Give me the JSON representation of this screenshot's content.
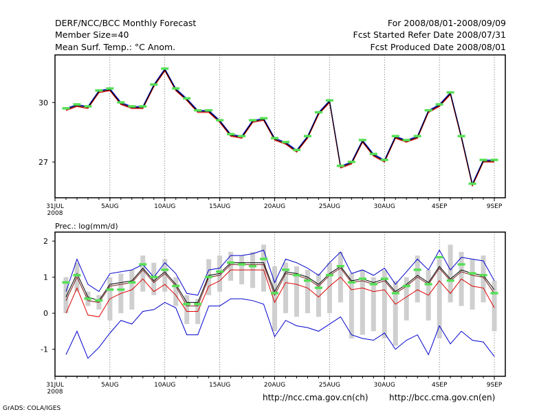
{
  "header": {
    "title": "DERF/NCC/BCC Monthly Forecast",
    "member_size": "Member Size=40",
    "variable": "Mean Surf. Temp.: °C Anom.",
    "period": "For 2008/08/01-2008/09/09",
    "started": "Fcst Started Refer Date 2008/07/31",
    "produced": "Fcst Produced Date 2008/08/01"
  },
  "footer": {
    "grads": "GrADS: COLA/IGES",
    "url_ncc": "http://ncc.cma.gov.cn(ch)",
    "url_bcc": "http://bcc.cma.gov.cn(en)"
  },
  "colors": {
    "green": "#55e055",
    "blue": "#0000cc",
    "red": "#dd0000",
    "black": "#000000",
    "gray": "#cfcfcf"
  },
  "chart_data": [
    {
      "type": "line",
      "title": "Mean Surf. Temp.: °C Anom.",
      "ylabel": "",
      "x_ticks": [
        {
          "day": 0,
          "label": "31JUL",
          "sub": "2008"
        },
        {
          "day": 5,
          "label": "5AUG"
        },
        {
          "day": 10,
          "label": "10AUG"
        },
        {
          "day": 15,
          "label": "15AUG"
        },
        {
          "day": 20,
          "label": "20AUG"
        },
        {
          "day": 25,
          "label": "25AUG"
        },
        {
          "day": 30,
          "label": "30AUG"
        },
        {
          "day": 35,
          "label": "4SEP"
        },
        {
          "day": 40,
          "label": "9SEP"
        }
      ],
      "y_ticks": [
        {
          "value": 30,
          "label": "30"
        },
        {
          "value": 27,
          "label": "27"
        }
      ],
      "xlim": [
        0,
        41
      ],
      "ylim": [
        25.2,
        32.4
      ],
      "green": [
        29.7,
        29.9,
        29.8,
        30.6,
        30.7,
        30.0,
        29.8,
        29.8,
        30.9,
        31.7,
        30.7,
        30.2,
        29.6,
        29.6,
        29.1,
        28.4,
        28.3,
        29.1,
        29.2,
        28.2,
        28.0,
        27.6,
        28.3,
        29.5,
        30.1,
        26.8,
        27.0,
        28.1,
        27.4,
        27.1,
        28.3,
        28.1,
        28.3,
        29.6,
        29.9,
        30.5,
        28.3,
        25.9,
        27.1,
        27.1
      ],
      "series": [
        {
          "name": "upper",
          "values": [
            29.7,
            29.9,
            29.8,
            30.6,
            30.7,
            30.0,
            29.8,
            29.8,
            30.9,
            31.7,
            30.7,
            30.2,
            29.6,
            29.6,
            29.1,
            28.4,
            28.3,
            29.1,
            29.2,
            28.2,
            28.0,
            27.6,
            28.3,
            29.5,
            30.1,
            26.8,
            27.0,
            28.1,
            27.4,
            27.1,
            28.3,
            28.1,
            28.3,
            29.6,
            29.9,
            30.5,
            28.3,
            25.9,
            27.1,
            27.1
          ]
        },
        {
          "name": "mean",
          "values": [
            29.65,
            29.85,
            29.75,
            30.55,
            30.65,
            29.95,
            29.75,
            29.75,
            30.85,
            31.65,
            30.65,
            30.15,
            29.55,
            29.55,
            29.05,
            28.35,
            28.25,
            29.05,
            29.15,
            28.15,
            27.95,
            27.55,
            28.25,
            29.45,
            30.05,
            26.75,
            26.95,
            28.05,
            27.35,
            27.05,
            28.25,
            28.05,
            28.25,
            29.55,
            29.85,
            30.45,
            28.25,
            25.85,
            27.05,
            27.05
          ]
        },
        {
          "name": "lower",
          "values": [
            29.6,
            29.8,
            29.7,
            30.5,
            30.6,
            29.9,
            29.7,
            29.7,
            30.8,
            31.6,
            30.6,
            30.1,
            29.5,
            29.5,
            29.0,
            28.3,
            28.2,
            29.0,
            29.1,
            28.1,
            27.9,
            27.5,
            28.2,
            29.4,
            30.0,
            26.7,
            26.9,
            28.0,
            27.3,
            27.0,
            28.2,
            28.0,
            28.2,
            29.5,
            29.8,
            30.4,
            28.2,
            25.8,
            27.0,
            27.0
          ]
        }
      ]
    },
    {
      "type": "line",
      "title": "Prec.: log(mm/d)",
      "ylabel": "Prec.: log(mm/d)",
      "x_ticks": [
        {
          "day": 0,
          "label": "31JUL",
          "sub": "2008"
        },
        {
          "day": 5,
          "label": "5AUG"
        },
        {
          "day": 10,
          "label": "10AUG"
        },
        {
          "day": 15,
          "label": "15AUG"
        },
        {
          "day": 20,
          "label": "20AUG"
        },
        {
          "day": 25,
          "label": "25AUG"
        },
        {
          "day": 30,
          "label": "30AUG"
        },
        {
          "day": 35,
          "label": "4SEP"
        },
        {
          "day": 40,
          "label": "9SEP"
        }
      ],
      "y_ticks": [
        {
          "value": 2,
          "label": "2"
        },
        {
          "value": 1,
          "label": "1"
        },
        {
          "value": 0,
          "label": "0"
        },
        {
          "value": -1,
          "label": "-1"
        }
      ],
      "xlim": [
        0,
        41
      ],
      "ylim": [
        -1.75,
        2.25
      ],
      "bars": [
        [
          0.0,
          1.0
        ],
        [
          0.6,
          1.4
        ],
        [
          0.2,
          0.6
        ],
        [
          0.1,
          0.5
        ],
        [
          -0.2,
          1.0
        ],
        [
          0.0,
          1.1
        ],
        [
          0.1,
          1.2
        ],
        [
          0.6,
          1.6
        ],
        [
          0.5,
          1.4
        ],
        [
          0.6,
          1.5
        ],
        [
          0.2,
          1.0
        ],
        [
          -0.3,
          0.5
        ],
        [
          -0.3,
          0.4
        ],
        [
          0.5,
          1.5
        ],
        [
          0.6,
          1.6
        ],
        [
          0.9,
          1.7
        ],
        [
          0.8,
          1.6
        ],
        [
          0.7,
          1.7
        ],
        [
          0.6,
          1.9
        ],
        [
          -0.5,
          1.3
        ],
        [
          0.0,
          1.4
        ],
        [
          -0.1,
          1.3
        ],
        [
          0.0,
          1.2
        ],
        [
          -0.1,
          1.1
        ],
        [
          0.0,
          1.4
        ],
        [
          0.3,
          1.7
        ],
        [
          -0.7,
          1.1
        ],
        [
          -0.6,
          1.2
        ],
        [
          -0.5,
          1.0
        ],
        [
          -0.7,
          1.2
        ],
        [
          -0.9,
          0.9
        ],
        [
          -0.2,
          1.0
        ],
        [
          0.3,
          1.6
        ],
        [
          -0.2,
          1.2
        ],
        [
          -0.7,
          1.5
        ],
        [
          0.3,
          1.9
        ],
        [
          0.2,
          1.7
        ],
        [
          0.1,
          1.5
        ],
        [
          0.3,
          1.6
        ],
        [
          -0.5,
          0.9
        ]
      ],
      "green": [
        0.85,
        1.05,
        0.4,
        0.35,
        0.65,
        0.65,
        0.85,
        1.35,
        1.0,
        1.2,
        0.75,
        0.25,
        0.25,
        1.0,
        1.15,
        1.4,
        1.35,
        1.3,
        1.5,
        0.55,
        1.2,
        1.05,
        0.9,
        0.7,
        1.05,
        1.3,
        0.85,
        0.95,
        0.8,
        0.95,
        0.55,
        0.75,
        1.2,
        0.8,
        1.55,
        0.9,
        1.35,
        1.1,
        1.05,
        0.55
      ],
      "series": [
        {
          "name": "max",
          "values": [
            0.6,
            1.5,
            0.8,
            0.6,
            1.1,
            1.15,
            1.2,
            1.35,
            1.0,
            1.4,
            1.1,
            0.55,
            0.5,
            1.2,
            1.25,
            1.6,
            1.6,
            1.65,
            1.75,
            0.85,
            1.5,
            1.4,
            1.25,
            1.05,
            1.4,
            1.7,
            1.1,
            1.2,
            1.05,
            1.25,
            0.8,
            1.15,
            1.5,
            1.2,
            1.75,
            1.2,
            1.55,
            1.5,
            1.45,
            0.9
          ]
        },
        {
          "name": "upper",
          "values": [
            0.45,
            1.1,
            0.45,
            0.35,
            0.8,
            0.85,
            0.9,
            1.25,
            0.9,
            1.15,
            0.8,
            0.3,
            0.3,
            1.05,
            1.1,
            1.4,
            1.4,
            1.4,
            1.4,
            0.6,
            1.15,
            1.1,
            1.0,
            0.8,
            1.1,
            1.3,
            0.9,
            0.95,
            0.85,
            0.95,
            0.6,
            0.8,
            1.05,
            0.85,
            1.3,
            0.95,
            1.2,
            1.1,
            1.05,
            0.65
          ]
        },
        {
          "name": "mean",
          "values": [
            0.35,
            1.0,
            0.35,
            0.3,
            0.75,
            0.8,
            0.85,
            1.2,
            0.85,
            1.1,
            0.75,
            0.2,
            0.2,
            1.0,
            1.05,
            1.35,
            1.35,
            1.35,
            1.35,
            0.5,
            1.1,
            1.05,
            0.95,
            0.75,
            1.05,
            1.25,
            0.85,
            0.9,
            0.8,
            0.9,
            0.55,
            0.75,
            1.0,
            0.8,
            1.25,
            0.9,
            1.15,
            1.05,
            1.0,
            0.55
          ]
        },
        {
          "name": "lower",
          "values": [
            0.0,
            0.7,
            -0.05,
            -0.1,
            0.4,
            0.55,
            0.65,
            0.95,
            0.6,
            0.8,
            0.5,
            0.05,
            0.05,
            0.75,
            0.9,
            1.2,
            1.2,
            1.2,
            1.2,
            0.3,
            0.85,
            0.8,
            0.7,
            0.45,
            0.75,
            1.0,
            0.65,
            0.7,
            0.6,
            0.65,
            0.25,
            0.45,
            0.65,
            0.5,
            0.9,
            0.55,
            0.95,
            0.75,
            0.7,
            0.15
          ]
        },
        {
          "name": "min",
          "values": [
            -1.15,
            -0.5,
            -1.25,
            -0.95,
            -0.55,
            -0.2,
            -0.3,
            0.05,
            0.1,
            0.3,
            0.15,
            -0.6,
            -0.6,
            0.2,
            0.2,
            0.4,
            0.4,
            0.35,
            0.25,
            -0.65,
            -0.2,
            -0.35,
            -0.4,
            -0.5,
            -0.3,
            -0.1,
            -0.6,
            -0.7,
            -0.75,
            -0.55,
            -1.0,
            -0.75,
            -0.6,
            -1.15,
            -0.35,
            -0.85,
            -0.5,
            -0.75,
            -0.8,
            -1.2
          ]
        }
      ]
    }
  ]
}
